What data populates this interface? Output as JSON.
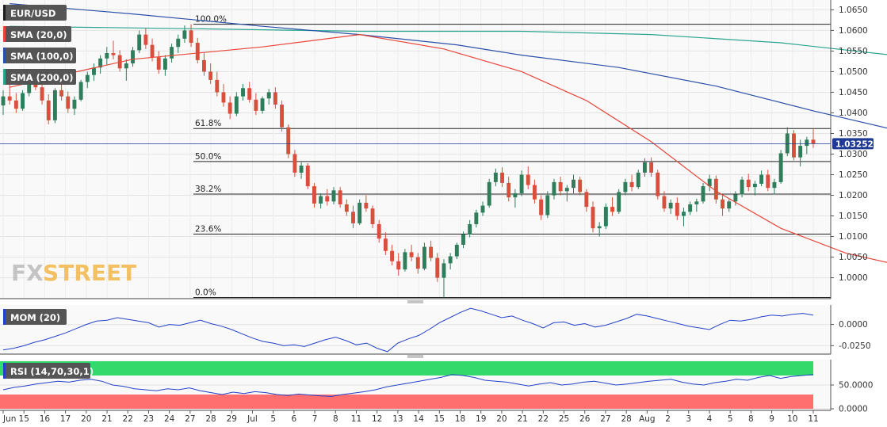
{
  "colors": {
    "bull": "#2e7d5b",
    "bear": "#d94f3d",
    "sma20": "#e8463a",
    "sma100": "#2c4fa8",
    "sma200": "#2aa58f",
    "mom": "#2341c8",
    "rsi": "#2341c8",
    "label_bg": "#555555",
    "price_tag": "#1f3a93",
    "overbought": "#33d96a",
    "oversold": "#ff6f6f",
    "watermark": "#f2b84b"
  },
  "watermark": {
    "fx": "FX",
    "street": "STREET"
  },
  "legend": {
    "symbol": "EUR/USD",
    "sma20": "SMA (20,0)",
    "sma100": "SMA (100,0)",
    "sma200": "SMA (200,0)",
    "mom": "MOM (20)",
    "rsi": "RSI (14,70,30,1)"
  },
  "last_price": "1.03252",
  "chart_data": [
    {
      "type": "candlestick",
      "title": "EUR/USD",
      "ylim": [
        0.9955,
        1.067
      ],
      "y_ticks": [
        "1.0650",
        "1.0600",
        "1.0550",
        "1.0500",
        "1.0450",
        "1.0400",
        "1.0350",
        "1.0300",
        "1.0250",
        "1.0200",
        "1.0150",
        "1.0100",
        "1.0050",
        "1.0000"
      ],
      "y_tick_values": [
        1.065,
        1.06,
        1.055,
        1.05,
        1.045,
        1.04,
        1.035,
        1.03,
        1.025,
        1.02,
        1.015,
        1.01,
        1.005,
        1.0
      ],
      "x_ticks": [
        "Jun",
        "15",
        "16",
        "17",
        "20",
        "21",
        "22",
        "23",
        "24",
        "27",
        "28",
        "29",
        "Jul",
        "5",
        "6",
        "7",
        "8",
        "11",
        "12",
        "13",
        "14",
        "15",
        "18",
        "19",
        "20",
        "21",
        "22",
        "25",
        "26",
        "27",
        "28",
        "Aug",
        "2",
        "3",
        "4",
        "5",
        "8",
        "9",
        "10",
        "11"
      ],
      "fibonacci": [
        {
          "label": "100.0%",
          "value": 1.0615
        },
        {
          "label": "61.8%",
          "value": 1.0362
        },
        {
          "label": "50.0%",
          "value": 1.0282
        },
        {
          "label": "38.2%",
          "value": 1.0203
        },
        {
          "label": "23.6%",
          "value": 1.0106
        },
        {
          "label": "0.0%",
          "value": 0.9952
        }
      ],
      "last_value": 1.03252,
      "series": [
        {
          "name": "SMA (20,0)",
          "points": [
            [
              1,
              1.0462
            ],
            [
              10,
              1.0495
            ],
            [
              20,
              1.053
            ],
            [
              40,
              1.056
            ],
            [
              55,
              1.059
            ],
            [
              68,
              1.0555
            ],
            [
              80,
              1.05
            ],
            [
              90,
              1.043
            ],
            [
              100,
              1.033
            ],
            [
              110,
              1.021
            ],
            [
              120,
              1.012
            ],
            [
              130,
              1.006
            ],
            [
              137,
              1.0035
            ],
            [
              145,
              1.0045
            ],
            [
              152,
              1.008
            ],
            [
              160,
              1.014
            ],
            [
              167,
              1.019
            ],
            [
              178,
              1.022
            ],
            [
              190,
              1.021
            ],
            [
              205,
              1.0185
            ],
            [
              220,
              1.017
            ],
            [
              232,
              1.02
            ],
            [
              242,
              1.0215
            ],
            [
              252,
              1.0175
            ],
            [
              262,
              1.019
            ],
            [
              272,
              1.0215
            ],
            [
              282,
              1.0235
            ],
            [
              288,
              1.0252
            ]
          ]
        },
        {
          "name": "SMA (100,0)",
          "points": [
            [
              1,
              1.0665
            ],
            [
              20,
              1.064
            ],
            [
              40,
              1.061
            ],
            [
              55,
              1.059
            ],
            [
              70,
              1.0565
            ],
            [
              80,
              1.054
            ],
            [
              95,
              1.051
            ],
            [
              110,
              1.0465
            ],
            [
              125,
              1.0405
            ],
            [
              140,
              1.035
            ],
            [
              155,
              1.03
            ],
            [
              168,
              1.0255
            ],
            [
              185,
              1.021
            ],
            [
              205,
              1.017
            ],
            [
              220,
              1.0148
            ],
            [
              235,
              1.0145
            ],
            [
              250,
              1.016
            ],
            [
              265,
              1.018
            ],
            [
              280,
              1.02
            ],
            [
              288,
              1.0207
            ]
          ]
        },
        {
          "name": "SMA (200,0)",
          "points": [
            [
              1,
              1.061
            ],
            [
              30,
              1.0604
            ],
            [
              55,
              1.0598
            ],
            [
              80,
              1.0598
            ],
            [
              100,
              1.059
            ],
            [
              120,
              1.057
            ],
            [
              140,
              1.0535
            ],
            [
              160,
              1.049
            ],
            [
              180,
              1.0445
            ],
            [
              200,
              1.0395
            ],
            [
              220,
              1.0345
            ],
            [
              240,
              1.0305
            ],
            [
              258,
              1.028
            ],
            [
              272,
              1.0255
            ],
            [
              288,
              1.0225
            ]
          ]
        }
      ]
    },
    {
      "type": "line",
      "title": "MOM (20)",
      "ylim": [
        -0.034,
        0.022
      ],
      "y_ticks": [
        "0.0000",
        "-0.0250"
      ],
      "y_tick_values": [
        0.0,
        -0.025
      ],
      "series": [
        {
          "name": "MOM (20)",
          "values": [
            -0.03,
            -0.028,
            -0.025,
            -0.021,
            -0.018,
            -0.014,
            -0.01,
            -0.005,
            0.0,
            0.004,
            0.005,
            0.008,
            0.006,
            0.004,
            0.002,
            -0.003,
            0.0,
            -0.001,
            0.002,
            0.005,
            0.001,
            -0.002,
            -0.006,
            -0.011,
            -0.016,
            -0.02,
            -0.022,
            -0.025,
            -0.024,
            -0.026,
            -0.022,
            -0.018,
            -0.015,
            -0.019,
            -0.024,
            -0.022,
            -0.028,
            -0.032,
            -0.022,
            -0.017,
            -0.013,
            -0.006,
            0.002,
            0.008,
            0.014,
            0.019,
            0.016,
            0.012,
            0.008,
            0.01,
            0.005,
            0.001,
            -0.004,
            0.002,
            0.003,
            -0.001,
            0.001,
            -0.003,
            -0.001,
            0.003,
            0.007,
            0.012,
            0.01,
            0.007,
            0.004,
            0.001,
            -0.002,
            -0.004,
            -0.006,
            0.0,
            0.005,
            0.004,
            0.006,
            0.009,
            0.011,
            0.01,
            0.012,
            0.013,
            0.011
          ]
        }
      ]
    },
    {
      "type": "line",
      "title": "RSI (14,70,30,1)",
      "ylim": [
        0,
        100
      ],
      "y_ticks": [
        "50.0000",
        "0.0000"
      ],
      "y_tick_values": [
        50,
        0
      ],
      "bands": {
        "overbought": 70,
        "oversold": 30
      },
      "series": [
        {
          "name": "RSI (14,70,30,1)",
          "values": [
            40,
            45,
            48,
            52,
            55,
            58,
            56,
            60,
            62,
            58,
            50,
            47,
            42,
            40,
            38,
            42,
            40,
            44,
            38,
            34,
            30,
            35,
            32,
            36,
            34,
            30,
            28,
            31,
            29,
            27,
            26,
            30,
            33,
            36,
            40,
            46,
            50,
            54,
            58,
            62,
            66,
            72,
            70,
            66,
            60,
            58,
            56,
            52,
            48,
            52,
            55,
            50,
            52,
            56,
            58,
            54,
            50,
            52,
            55,
            58,
            60,
            62,
            56,
            52,
            50,
            55,
            58,
            62,
            60,
            66,
            70,
            64,
            68,
            70,
            72
          ]
        }
      ]
    }
  ],
  "candles": [
    [
      1.0418,
      1.0455,
      1.0395,
      1.044
    ],
    [
      1.044,
      1.047,
      1.042,
      1.043
    ],
    [
      1.043,
      1.0448,
      1.04,
      1.041
    ],
    [
      1.041,
      1.0455,
      1.0405,
      1.0448
    ],
    [
      1.0448,
      1.0492,
      1.044,
      1.048
    ],
    [
      1.048,
      1.0495,
      1.0455,
      1.0462
    ],
    [
      1.0462,
      1.0475,
      1.042,
      1.043
    ],
    [
      1.043,
      1.0445,
      1.0372,
      1.0382
    ],
    [
      1.0382,
      1.046,
      1.0375,
      1.0455
    ],
    [
      1.0455,
      1.0478,
      1.043,
      1.044
    ],
    [
      1.044,
      1.0452,
      1.04,
      1.041
    ],
    [
      1.041,
      1.044,
      1.0395,
      1.0432
    ],
    [
      1.0432,
      1.048,
      1.0428,
      1.0475
    ],
    [
      1.0475,
      1.05,
      1.046,
      1.0492
    ],
    [
      1.0492,
      1.052,
      1.0478,
      1.051
    ],
    [
      1.051,
      1.054,
      1.0495,
      1.0532
    ],
    [
      1.0532,
      1.056,
      1.0515,
      1.0545
    ],
    [
      1.0545,
      1.0575,
      1.053,
      1.054
    ],
    [
      1.054,
      1.0552,
      1.05,
      1.0508
    ],
    [
      1.0508,
      1.053,
      1.0478,
      1.052
    ],
    [
      1.052,
      1.056,
      1.0512,
      1.0552
    ],
    [
      1.0552,
      1.06,
      1.0545,
      1.059
    ],
    [
      1.059,
      1.0605,
      1.0555,
      1.0565
    ],
    [
      1.0565,
      1.058,
      1.0525,
      1.0535
    ],
    [
      1.0535,
      1.055,
      1.0495,
      1.0505
    ],
    [
      1.0505,
      1.054,
      1.049,
      1.0532
    ],
    [
      1.0532,
      1.0568,
      1.0522,
      1.056
    ],
    [
      1.056,
      1.059,
      1.0545,
      1.058
    ],
    [
      1.058,
      1.0612,
      1.057,
      1.06
    ],
    [
      1.06,
      1.0615,
      1.056,
      1.057
    ],
    [
      1.057,
      1.0582,
      1.052,
      1.0528
    ],
    [
      1.0528,
      1.0545,
      1.049,
      1.05
    ],
    [
      1.05,
      1.052,
      1.047,
      1.048
    ],
    [
      1.048,
      1.05,
      1.044,
      1.045
    ],
    [
      1.045,
      1.047,
      1.0415,
      1.0425
    ],
    [
      1.0425,
      1.044,
      1.0385,
      1.0398
    ],
    [
      1.0398,
      1.045,
      1.0392,
      1.044
    ],
    [
      1.044,
      1.047,
      1.043,
      1.046
    ],
    [
      1.046,
      1.0475,
      1.0425,
      1.0432
    ],
    [
      1.0432,
      1.0448,
      1.0395,
      1.0405
    ],
    [
      1.0405,
      1.044,
      1.0398,
      1.0435
    ],
    [
      1.0435,
      1.0458,
      1.042,
      1.045
    ],
    [
      1.045,
      1.0462,
      1.041,
      1.042
    ],
    [
      1.042,
      1.043,
      1.0355,
      1.0365
    ],
    [
      1.0365,
      1.0372,
      1.029,
      1.03
    ],
    [
      1.03,
      1.031,
      1.0245,
      1.0255
    ],
    [
      1.0255,
      1.028,
      1.024,
      1.0272
    ],
    [
      1.0272,
      1.0278,
      1.0215,
      1.0222
    ],
    [
      1.0222,
      1.023,
      1.017,
      1.018
    ],
    [
      1.018,
      1.0205,
      1.0168,
      1.0198
    ],
    [
      1.0198,
      1.0215,
      1.0175,
      1.0185
    ],
    [
      1.0185,
      1.022,
      1.0178,
      1.0212
    ],
    [
      1.0212,
      1.022,
      1.017,
      1.0178
    ],
    [
      1.0178,
      1.019,
      1.015,
      1.016
    ],
    [
      1.016,
      1.0175,
      1.012,
      1.0132
    ],
    [
      1.0132,
      1.019,
      1.0128,
      1.0182
    ],
    [
      1.0182,
      1.02,
      1.016,
      1.0168
    ],
    [
      1.0168,
      1.0175,
      1.012,
      1.013
    ],
    [
      1.013,
      1.014,
      1.0085,
      1.0095
    ],
    [
      1.0095,
      1.011,
      1.0055,
      1.0065
    ],
    [
      1.0065,
      1.008,
      1.003,
      1.004
    ],
    [
      1.004,
      1.006,
      1.0005,
      1.002
    ],
    [
      1.002,
      1.007,
      1.0015,
      1.0062
    ],
    [
      1.0062,
      1.008,
      1.004,
      1.005
    ],
    [
      1.005,
      1.006,
      1.001,
      1.0022
    ],
    [
      1.0022,
      1.0085,
      1.0018,
      1.0075
    ],
    [
      1.0075,
      1.009,
      1.004,
      1.0048
    ],
    [
      1.0048,
      1.006,
      0.999,
      1.0
    ],
    [
      1.0,
      1.0045,
      0.9952,
      1.0035
    ],
    [
      1.0035,
      1.006,
      1.002,
      1.0052
    ],
    [
      1.0052,
      1.0085,
      1.0045,
      1.008
    ],
    [
      1.008,
      1.0112,
      1.0072,
      1.0105
    ],
    [
      1.0105,
      1.014,
      1.0098,
      1.013
    ],
    [
      1.013,
      1.0165,
      1.0122,
      1.0158
    ],
    [
      1.0158,
      1.0185,
      1.015,
      1.0175
    ],
    [
      1.0175,
      1.024,
      1.017,
      1.0232
    ],
    [
      1.0232,
      1.0265,
      1.0222,
      1.0255
    ],
    [
      1.0255,
      1.0268,
      1.022,
      1.023
    ],
    [
      1.023,
      1.0245,
      1.0185,
      1.0195
    ],
    [
      1.0195,
      1.0215,
      1.017,
      1.0205
    ],
    [
      1.0205,
      1.026,
      1.0198,
      1.025
    ],
    [
      1.025,
      1.027,
      1.0215,
      1.0225
    ],
    [
      1.0225,
      1.0238,
      1.018,
      1.019
    ],
    [
      1.019,
      1.02,
      1.014,
      1.0152
    ],
    [
      1.0152,
      1.021,
      1.0145,
      1.02
    ],
    [
      1.02,
      1.024,
      1.019,
      1.0232
    ],
    [
      1.0232,
      1.0245,
      1.02,
      1.021
    ],
    [
      1.021,
      1.0225,
      1.0185,
      1.0218
    ],
    [
      1.0218,
      1.025,
      1.0205,
      1.0238
    ],
    [
      1.0238,
      1.0245,
      1.02,
      1.0208
    ],
    [
      1.0208,
      1.0215,
      1.016,
      1.0172
    ],
    [
      1.0172,
      1.0185,
      1.011,
      1.012
    ],
    [
      1.012,
      1.0135,
      1.01,
      1.0125
    ],
    [
      1.0125,
      1.018,
      1.0118,
      1.0172
    ],
    [
      1.0172,
      1.0195,
      1.015,
      1.016
    ],
    [
      1.016,
      1.0215,
      1.0155,
      1.0208
    ],
    [
      1.0208,
      1.024,
      1.02,
      1.0232
    ],
    [
      1.0232,
      1.025,
      1.021,
      1.022
    ],
    [
      1.022,
      1.0262,
      1.0215,
      1.0255
    ],
    [
      1.0255,
      1.029,
      1.0245,
      1.028
    ],
    [
      1.028,
      1.0292,
      1.0245,
      1.0255
    ],
    [
      1.0255,
      1.0262,
      1.019,
      1.0198
    ],
    [
      1.0198,
      1.021,
      1.016,
      1.0168
    ],
    [
      1.0168,
      1.019,
      1.0155,
      1.0182
    ],
    [
      1.0182,
      1.0195,
      1.014,
      1.015
    ],
    [
      1.015,
      1.017,
      1.0125,
      1.016
    ],
    [
      1.016,
      1.0185,
      1.0152,
      1.0178
    ],
    [
      1.0178,
      1.0192,
      1.016,
      1.0185
    ],
    [
      1.0185,
      1.023,
      1.018,
      1.0222
    ],
    [
      1.0222,
      1.025,
      1.021,
      1.024
    ],
    [
      1.024,
      1.0248,
      1.018,
      1.019
    ],
    [
      1.019,
      1.02,
      1.015,
      1.0168
    ],
    [
      1.0168,
      1.019,
      1.016,
      1.0185
    ],
    [
      1.0185,
      1.021,
      1.0175,
      1.0202
    ],
    [
      1.0202,
      1.0245,
      1.0195,
      1.0238
    ],
    [
      1.0238,
      1.0252,
      1.021,
      1.022
    ],
    [
      1.022,
      1.0235,
      1.02,
      1.0228
    ],
    [
      1.0228,
      1.026,
      1.0222,
      1.025
    ],
    [
      1.025,
      1.0262,
      1.021,
      1.0218
    ],
    [
      1.0218,
      1.024,
      1.0202,
      1.0232
    ],
    [
      1.0232,
      1.031,
      1.0228,
      1.0302
    ],
    [
      1.0302,
      1.0365,
      1.0295,
      1.035
    ],
    [
      1.035,
      1.0358,
      1.0285,
      1.0292
    ],
    [
      1.0292,
      1.0335,
      1.027,
      1.032
    ],
    [
      1.032,
      1.0342,
      1.03,
      1.0335
    ],
    [
      1.0335,
      1.0362,
      1.0315,
      1.0325
    ]
  ]
}
